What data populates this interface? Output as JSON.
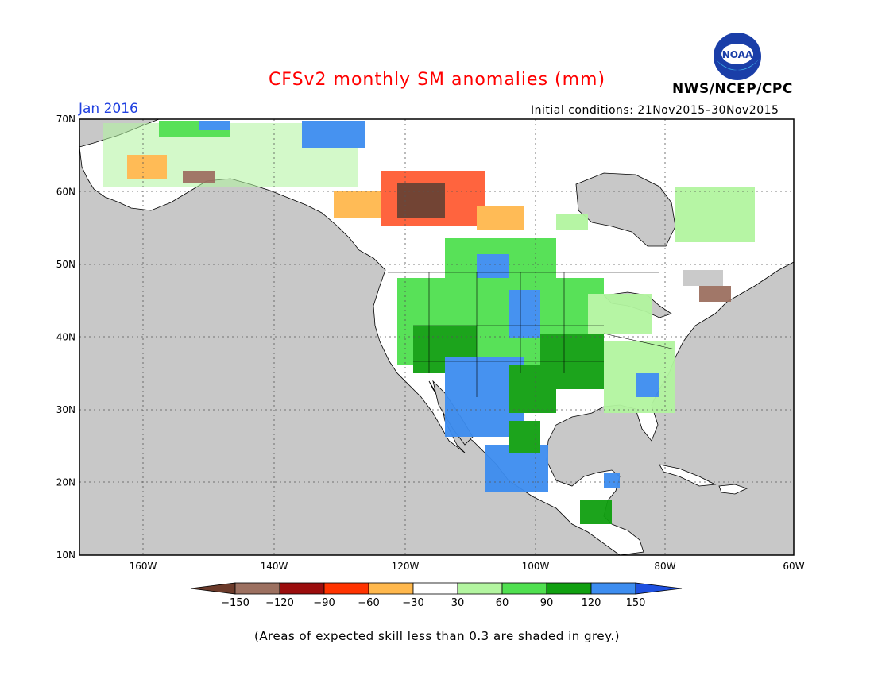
{
  "header": {
    "title": "CFSv2 monthly SM anomalies (mm)",
    "month": "Jan 2016",
    "initial_conditions": "Initial conditions: 21Nov2015–30Nov2015",
    "agency": "NWS/NCEP/CPC",
    "logo_text": "NOAA"
  },
  "map": {
    "lat_labels": [
      "70N",
      "60N",
      "50N",
      "40N",
      "30N",
      "20N",
      "10N"
    ],
    "lon_labels": [
      "160W",
      "140W",
      "120W",
      "100W",
      "80W",
      "60W"
    ],
    "land_color": "#ffffff",
    "ocean_color": "#c8c8c8",
    "skill_mask_color": "#c8c8c8"
  },
  "legend": {
    "labels": [
      "−150",
      "−120",
      "−90",
      "−60",
      "−30",
      "30",
      "60",
      "90",
      "120",
      "150"
    ],
    "colors": [
      "#6b3a2a",
      "#9c7060",
      "#9b0d0d",
      "#ff3300",
      "#ffb84d",
      "#ffffff",
      "#b3f5a0",
      "#50e050",
      "#10a010",
      "#3d8df0",
      "#1e50e0"
    ],
    "note": "(Areas of expected skill less than 0.3 are shaded in grey.)"
  }
}
